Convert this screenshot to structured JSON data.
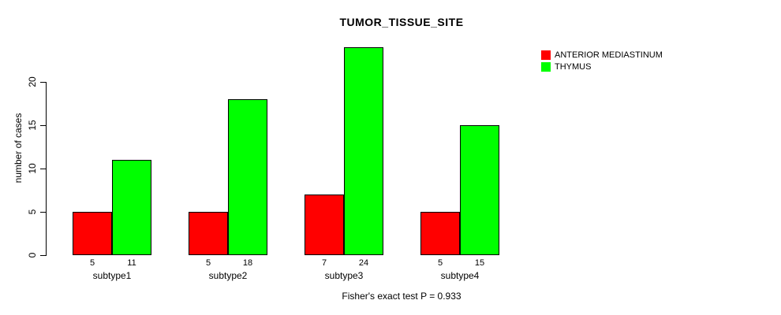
{
  "chart": {
    "title": "TUMOR_TISSUE_SITE",
    "ylabel": "number of cases",
    "caption": "Fisher's exact test P = 0.933"
  },
  "chart_data": {
    "type": "bar",
    "title": "TUMOR_TISSUE_SITE",
    "xlabel": "",
    "ylabel": "number of cases",
    "categories": [
      "subtype1",
      "subtype2",
      "subtype3",
      "subtype4"
    ],
    "series": [
      {
        "name": "ANTERIOR MEDIASTINUM",
        "color": "#FF0000",
        "values": [
          5,
          5,
          7,
          5
        ]
      },
      {
        "name": "THYMUS",
        "color": "#00FF00",
        "values": [
          11,
          18,
          24,
          15
        ]
      }
    ],
    "yticks": [
      0,
      5,
      10,
      15,
      20
    ],
    "ylim": [
      0,
      24
    ],
    "grid": false,
    "legend_position": "top-right",
    "bar_value_labels": true,
    "annotation": "Fisher's exact test P = 0.933"
  }
}
